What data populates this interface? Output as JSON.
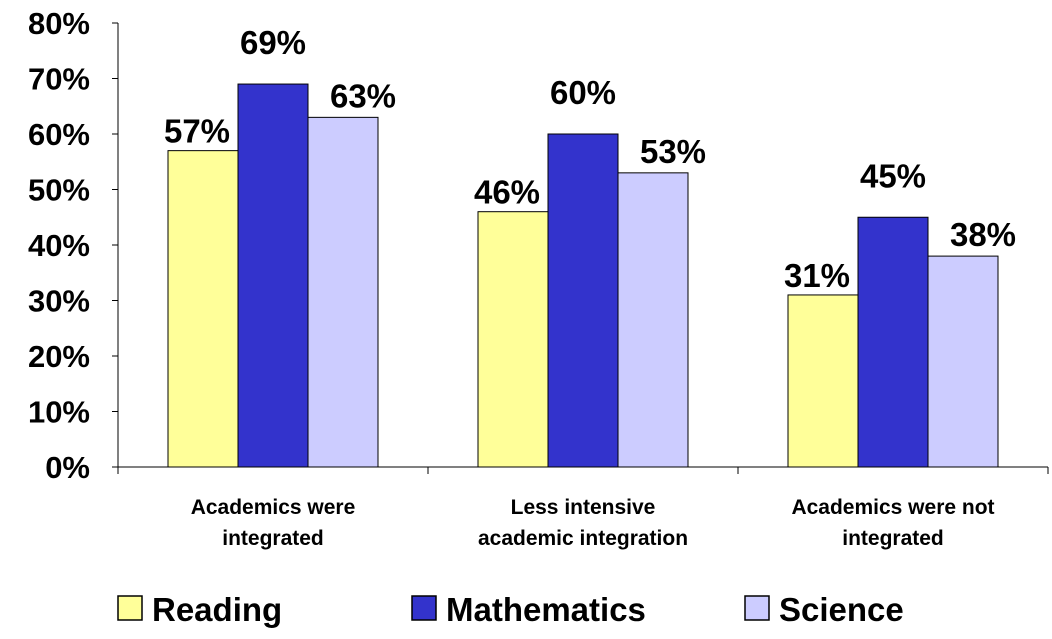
{
  "chart_data": {
    "type": "bar",
    "title": "",
    "xlabel": "",
    "ylabel": "",
    "ylim": [
      0,
      80
    ],
    "yticks": [
      0,
      10,
      20,
      30,
      40,
      50,
      60,
      70,
      80
    ],
    "ytick_labels": [
      "0%",
      "10%",
      "20%",
      "30%",
      "40%",
      "50%",
      "60%",
      "70%",
      "80%"
    ],
    "grid": false,
    "legend_position": "bottom",
    "categories": [
      [
        "Academics were",
        "integrated"
      ],
      [
        "Less intensive",
        "academic integration"
      ],
      [
        "Academics were not",
        "integrated"
      ]
    ],
    "series": [
      {
        "name": "Reading",
        "color": "#FFFF99",
        "values": [
          57,
          46,
          31
        ],
        "labels": [
          "57%",
          "46%",
          "31%"
        ]
      },
      {
        "name": "Mathematics",
        "color": "#3333CC",
        "values": [
          69,
          60,
          45
        ],
        "labels": [
          "69%",
          "60%",
          "45%"
        ]
      },
      {
        "name": "Science",
        "color": "#CCCCFF",
        "values": [
          63,
          53,
          38
        ],
        "labels": [
          "63%",
          "53%",
          "38%"
        ]
      }
    ]
  }
}
